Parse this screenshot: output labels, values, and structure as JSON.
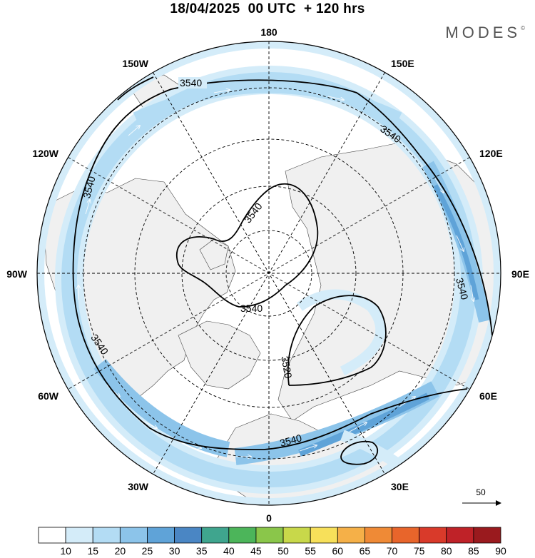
{
  "title": "18/04/2025  00 UTC  + 120 hrs",
  "logo": "MODES",
  "logo_mark": "©",
  "map": {
    "projection": "north-polar-stereographic",
    "longitude_labels": {
      "top": "180",
      "bottom": "0",
      "left": "90W",
      "right": "90E",
      "upper_left_1": "150W",
      "upper_left_2": "120W",
      "lower_left_1": "60W",
      "lower_left_2": "30W",
      "upper_right_1": "150E",
      "upper_right_2": "120E",
      "lower_right_1": "60E",
      "lower_right_2": "30E"
    },
    "contour_labels": [
      "3540",
      "3540",
      "3540",
      "3540",
      "3540",
      "3540",
      "3540",
      "3520",
      "3540"
    ],
    "wind_reference": "50",
    "colors": {
      "land": "#f0f0f0",
      "speed_15_20": "#d4ecf9",
      "speed_20_25": "#b3dcf4",
      "speed_25_30": "#8cc4ea",
      "speed_30_35": "#5fa3d8",
      "contour": "#000000"
    }
  },
  "colorbar": {
    "ticks": [
      "10",
      "15",
      "20",
      "25",
      "30",
      "35",
      "40",
      "45",
      "50",
      "55",
      "60",
      "65",
      "70",
      "75",
      "80",
      "85",
      "90"
    ],
    "colors": [
      "#ffffff",
      "#d4ecf9",
      "#b3dcf4",
      "#8cc4ea",
      "#5fa3d8",
      "#4a86c4",
      "#3fa58e",
      "#4cb55a",
      "#8ac64a",
      "#c8d84a",
      "#f7e05a",
      "#f5b048",
      "#ef8a36",
      "#e8652b",
      "#d93a2a",
      "#bf2228",
      "#9a1a1e"
    ]
  }
}
